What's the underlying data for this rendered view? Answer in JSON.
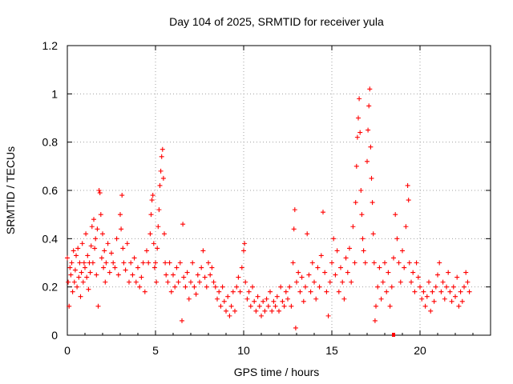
{
  "chart_data": {
    "type": "scatter",
    "title": "Day 104 of 2025, SRMTID for receiver yula",
    "xlabel": "GPS time / hours",
    "ylabel": "SRMTID / TECUs",
    "xlim": [
      0,
      24
    ],
    "ylim": [
      0,
      1.2
    ],
    "grid": true,
    "marker": "+",
    "series_color": "#ff0000",
    "x_ticks": [
      0,
      5,
      10,
      15,
      20
    ],
    "x_tick_labels": [
      "0",
      "5",
      "10",
      "15",
      "20"
    ],
    "y_ticks": [
      0,
      0.2,
      0.4,
      0.6,
      0.8,
      1.0,
      1.2
    ],
    "y_tick_labels": [
      "0",
      "0.2",
      "0.4",
      "0.6",
      "0.8",
      "1",
      "1.2"
    ],
    "series": [
      {
        "name": "SRMTID",
        "points": [
          [
            0.0,
            0.32
          ],
          [
            0.05,
            0.22
          ],
          [
            0.1,
            0.12
          ],
          [
            0.15,
            0.28
          ],
          [
            0.2,
            0.25
          ],
          [
            0.25,
            0.3
          ],
          [
            0.3,
            0.18
          ],
          [
            0.35,
            0.35
          ],
          [
            0.4,
            0.22
          ],
          [
            0.45,
            0.27
          ],
          [
            0.5,
            0.33
          ],
          [
            0.55,
            0.2
          ],
          [
            0.6,
            0.36
          ],
          [
            0.65,
            0.24
          ],
          [
            0.7,
            0.3
          ],
          [
            0.75,
            0.16
          ],
          [
            0.8,
            0.26
          ],
          [
            0.85,
            0.38
          ],
          [
            0.9,
            0.22
          ],
          [
            0.95,
            0.3
          ],
          [
            1.0,
            0.28
          ],
          [
            1.05,
            0.42
          ],
          [
            1.1,
            0.24
          ],
          [
            1.15,
            0.33
          ],
          [
            1.2,
            0.19
          ],
          [
            1.25,
            0.3
          ],
          [
            1.3,
            0.26
          ],
          [
            1.35,
            0.37
          ],
          [
            1.4,
            0.45
          ],
          [
            1.45,
            0.3
          ],
          [
            1.5,
            0.48
          ],
          [
            1.55,
            0.36
          ],
          [
            1.6,
            0.4
          ],
          [
            1.65,
            0.25
          ],
          [
            1.7,
            0.44
          ],
          [
            1.75,
            0.12
          ],
          [
            1.8,
            0.6
          ],
          [
            1.85,
            0.59
          ],
          [
            1.9,
            0.5
          ],
          [
            1.95,
            0.32
          ],
          [
            2.0,
            0.42
          ],
          [
            2.05,
            0.28
          ],
          [
            2.1,
            0.35
          ],
          [
            2.15,
            0.22
          ],
          [
            2.2,
            0.3
          ],
          [
            2.3,
            0.38
          ],
          [
            2.4,
            0.26
          ],
          [
            2.5,
            0.34
          ],
          [
            2.6,
            0.3
          ],
          [
            2.7,
            0.28
          ],
          [
            2.8,
            0.4
          ],
          [
            2.9,
            0.25
          ],
          [
            3.0,
            0.5
          ],
          [
            3.05,
            0.44
          ],
          [
            3.1,
            0.58
          ],
          [
            3.15,
            0.36
          ],
          [
            3.2,
            0.3
          ],
          [
            3.3,
            0.27
          ],
          [
            3.4,
            0.38
          ],
          [
            3.5,
            0.22
          ],
          [
            3.6,
            0.3
          ],
          [
            3.7,
            0.25
          ],
          [
            3.8,
            0.32
          ],
          [
            3.9,
            0.22
          ],
          [
            4.0,
            0.28
          ],
          [
            4.1,
            0.2
          ],
          [
            4.2,
            0.24
          ],
          [
            4.3,
            0.3
          ],
          [
            4.4,
            0.18
          ],
          [
            4.5,
            0.35
          ],
          [
            4.6,
            0.3
          ],
          [
            4.7,
            0.42
          ],
          [
            4.75,
            0.5
          ],
          [
            4.8,
            0.56
          ],
          [
            4.85,
            0.58
          ],
          [
            4.9,
            0.38
          ],
          [
            4.95,
            0.28
          ],
          [
            5.0,
            0.3
          ],
          [
            5.05,
            0.22
          ],
          [
            5.1,
            0.36
          ],
          [
            5.15,
            0.45
          ],
          [
            5.2,
            0.52
          ],
          [
            5.25,
            0.62
          ],
          [
            5.3,
            0.68
          ],
          [
            5.35,
            0.74
          ],
          [
            5.4,
            0.77
          ],
          [
            5.45,
            0.65
          ],
          [
            5.5,
            0.42
          ],
          [
            5.55,
            0.3
          ],
          [
            5.6,
            0.25
          ],
          [
            5.7,
            0.22
          ],
          [
            5.8,
            0.3
          ],
          [
            5.9,
            0.18
          ],
          [
            6.0,
            0.25
          ],
          [
            6.1,
            0.2
          ],
          [
            6.2,
            0.28
          ],
          [
            6.3,
            0.22
          ],
          [
            6.4,
            0.3
          ],
          [
            6.5,
            0.06
          ],
          [
            6.55,
            0.46
          ],
          [
            6.6,
            0.24
          ],
          [
            6.7,
            0.2
          ],
          [
            6.8,
            0.26
          ],
          [
            6.9,
            0.15
          ],
          [
            7.0,
            0.22
          ],
          [
            7.1,
            0.3
          ],
          [
            7.2,
            0.2
          ],
          [
            7.3,
            0.17
          ],
          [
            7.4,
            0.25
          ],
          [
            7.5,
            0.22
          ],
          [
            7.6,
            0.28
          ],
          [
            7.7,
            0.35
          ],
          [
            7.8,
            0.24
          ],
          [
            7.9,
            0.2
          ],
          [
            8.0,
            0.3
          ],
          [
            8.1,
            0.25
          ],
          [
            8.2,
            0.28
          ],
          [
            8.3,
            0.22
          ],
          [
            8.4,
            0.2
          ],
          [
            8.5,
            0.15
          ],
          [
            8.6,
            0.18
          ],
          [
            8.7,
            0.12
          ],
          [
            8.8,
            0.2
          ],
          [
            8.9,
            0.14
          ],
          [
            9.0,
            0.1
          ],
          [
            9.1,
            0.16
          ],
          [
            9.2,
            0.08
          ],
          [
            9.3,
            0.12
          ],
          [
            9.4,
            0.18
          ],
          [
            9.5,
            0.1
          ],
          [
            9.6,
            0.2
          ],
          [
            9.7,
            0.24
          ],
          [
            9.8,
            0.18
          ],
          [
            9.9,
            0.28
          ],
          [
            10.0,
            0.35
          ],
          [
            10.05,
            0.38
          ],
          [
            10.1,
            0.22
          ],
          [
            10.2,
            0.15
          ],
          [
            10.3,
            0.18
          ],
          [
            10.4,
            0.12
          ],
          [
            10.5,
            0.2
          ],
          [
            10.6,
            0.14
          ],
          [
            10.7,
            0.1
          ],
          [
            10.8,
            0.16
          ],
          [
            10.9,
            0.12
          ],
          [
            11.0,
            0.08
          ],
          [
            11.1,
            0.14
          ],
          [
            11.2,
            0.1
          ],
          [
            11.3,
            0.15
          ],
          [
            11.4,
            0.12
          ],
          [
            11.5,
            0.18
          ],
          [
            11.6,
            0.1
          ],
          [
            11.7,
            0.14
          ],
          [
            11.8,
            0.12
          ],
          [
            11.9,
            0.16
          ],
          [
            12.0,
            0.1
          ],
          [
            12.1,
            0.2
          ],
          [
            12.2,
            0.14
          ],
          [
            12.3,
            0.12
          ],
          [
            12.4,
            0.18
          ],
          [
            12.5,
            0.15
          ],
          [
            12.6,
            0.2
          ],
          [
            12.7,
            0.12
          ],
          [
            12.8,
            0.3
          ],
          [
            12.85,
            0.44
          ],
          [
            12.9,
            0.52
          ],
          [
            12.95,
            0.03
          ],
          [
            13.0,
            0.22
          ],
          [
            13.1,
            0.26
          ],
          [
            13.2,
            0.18
          ],
          [
            13.3,
            0.24
          ],
          [
            13.4,
            0.14
          ],
          [
            13.5,
            0.2
          ],
          [
            13.6,
            0.42
          ],
          [
            13.7,
            0.25
          ],
          [
            13.8,
            0.18
          ],
          [
            13.9,
            0.3
          ],
          [
            14.0,
            0.22
          ],
          [
            14.1,
            0.15
          ],
          [
            14.2,
            0.28
          ],
          [
            14.3,
            0.2
          ],
          [
            14.4,
            0.33
          ],
          [
            14.5,
            0.51
          ],
          [
            14.6,
            0.26
          ],
          [
            14.7,
            0.18
          ],
          [
            14.8,
            0.08
          ],
          [
            14.9,
            0.22
          ],
          [
            15.0,
            0.3
          ],
          [
            15.1,
            0.4
          ],
          [
            15.2,
            0.25
          ],
          [
            15.3,
            0.35
          ],
          [
            15.4,
            0.18
          ],
          [
            15.5,
            0.28
          ],
          [
            15.6,
            0.22
          ],
          [
            15.7,
            0.15
          ],
          [
            15.8,
            0.32
          ],
          [
            15.9,
            0.26
          ],
          [
            16.0,
            0.36
          ],
          [
            16.1,
            0.22
          ],
          [
            16.2,
            0.45
          ],
          [
            16.3,
            0.3
          ],
          [
            16.35,
            0.55
          ],
          [
            16.4,
            0.7
          ],
          [
            16.45,
            0.82
          ],
          [
            16.5,
            0.9
          ],
          [
            16.55,
            0.98
          ],
          [
            16.6,
            0.84
          ],
          [
            16.65,
            0.6
          ],
          [
            16.7,
            0.5
          ],
          [
            16.75,
            0.4
          ],
          [
            16.8,
            0.35
          ],
          [
            16.9,
            0.3
          ],
          [
            17.0,
            0.72
          ],
          [
            17.05,
            0.85
          ],
          [
            17.1,
            0.95
          ],
          [
            17.15,
            1.02
          ],
          [
            17.2,
            0.78
          ],
          [
            17.25,
            0.65
          ],
          [
            17.3,
            0.55
          ],
          [
            17.35,
            0.42
          ],
          [
            17.4,
            0.3
          ],
          [
            17.45,
            0.06
          ],
          [
            17.5,
            0.12
          ],
          [
            17.6,
            0.2
          ],
          [
            17.7,
            0.28
          ],
          [
            17.8,
            0.15
          ],
          [
            17.9,
            0.22
          ],
          [
            18.0,
            0.3
          ],
          [
            18.1,
            0.18
          ],
          [
            18.2,
            0.26
          ],
          [
            18.3,
            0.12
          ],
          [
            18.4,
            0.2
          ],
          [
            18.5,
            0.32
          ],
          [
            18.6,
            0.5
          ],
          [
            18.7,
            0.4
          ],
          [
            18.8,
            0.3
          ],
          [
            18.9,
            0.22
          ],
          [
            19.0,
            0.35
          ],
          [
            19.1,
            0.28
          ],
          [
            19.2,
            0.45
          ],
          [
            19.3,
            0.62
          ],
          [
            19.35,
            0.56
          ],
          [
            19.4,
            0.3
          ],
          [
            19.5,
            0.22
          ],
          [
            19.6,
            0.26
          ],
          [
            19.7,
            0.18
          ],
          [
            19.8,
            0.3
          ],
          [
            19.9,
            0.24
          ],
          [
            20.0,
            0.2
          ],
          [
            20.1,
            0.15
          ],
          [
            20.2,
            0.18
          ],
          [
            20.3,
            0.12
          ],
          [
            20.4,
            0.16
          ],
          [
            20.5,
            0.22
          ],
          [
            20.6,
            0.1
          ],
          [
            20.7,
            0.18
          ],
          [
            20.8,
            0.14
          ],
          [
            20.9,
            0.2
          ],
          [
            21.0,
            0.25
          ],
          [
            21.1,
            0.3
          ],
          [
            21.2,
            0.18
          ],
          [
            21.3,
            0.22
          ],
          [
            21.4,
            0.15
          ],
          [
            21.5,
            0.2
          ],
          [
            21.6,
            0.26
          ],
          [
            21.7,
            0.18
          ],
          [
            21.8,
            0.14
          ],
          [
            21.9,
            0.2
          ],
          [
            22.0,
            0.16
          ],
          [
            22.1,
            0.24
          ],
          [
            22.2,
            0.12
          ],
          [
            22.3,
            0.18
          ],
          [
            22.4,
            0.14
          ],
          [
            22.5,
            0.2
          ],
          [
            22.6,
            0.26
          ],
          [
            22.7,
            0.22
          ],
          [
            22.8,
            0.18
          ]
        ]
      }
    ],
    "outlier_marker": {
      "x": 18.5,
      "y": 0.0
    }
  }
}
